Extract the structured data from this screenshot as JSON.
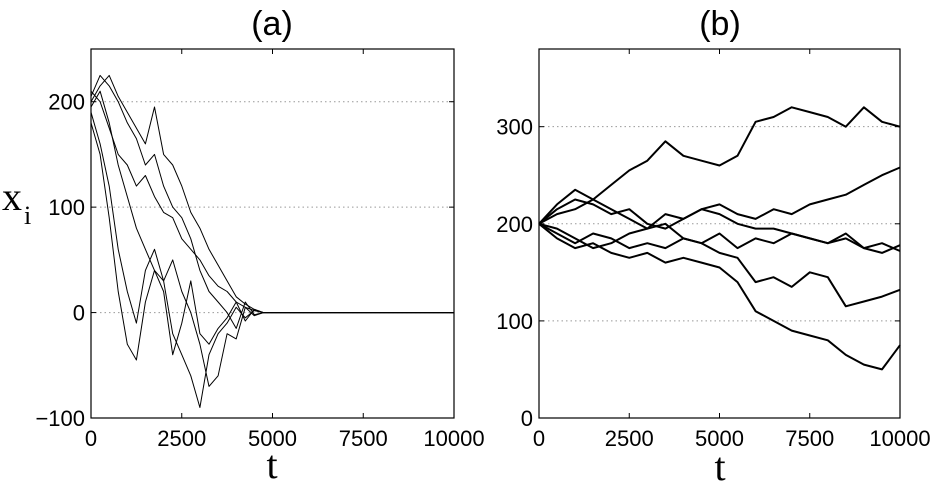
{
  "chart_data": [
    {
      "type": "line",
      "title": "(a)",
      "xlabel": "t",
      "ylabel": "x",
      "ylabel_subscript": "i",
      "xlim": [
        0,
        10000
      ],
      "ylim": [
        -100,
        250
      ],
      "xticks": [
        0,
        2500,
        5000,
        7500,
        10000
      ],
      "xtick_labels": [
        "0",
        "2500",
        "5000",
        "7500",
        "10000"
      ],
      "yticks": [
        -100,
        0,
        100,
        200
      ],
      "ytick_labels": [
        "−100",
        "0",
        "100",
        "200"
      ],
      "grid": "horizontal dotted",
      "line_color": "#000000",
      "series": [
        {
          "x": [
            0,
            250,
            500,
            750,
            1000,
            1250,
            1500,
            1750,
            2000,
            2250,
            2500,
            2750,
            3000,
            3250,
            3500,
            3750,
            4000,
            4250,
            4500,
            4750,
            5000,
            7500,
            10000
          ],
          "values": [
            200,
            215,
            225,
            205,
            190,
            175,
            160,
            195,
            150,
            140,
            120,
            95,
            80,
            60,
            45,
            30,
            15,
            8,
            3,
            0,
            0,
            0,
            0
          ]
        },
        {
          "x": [
            0,
            250,
            500,
            750,
            1000,
            1250,
            1500,
            1750,
            2000,
            2250,
            2500,
            2750,
            3000,
            3250,
            3500,
            3750,
            4000,
            4250,
            4500,
            4750,
            5000,
            7500,
            10000
          ],
          "values": [
            210,
            200,
            175,
            150,
            140,
            120,
            130,
            110,
            95,
            90,
            70,
            60,
            50,
            35,
            25,
            20,
            10,
            5,
            2,
            0,
            0,
            0,
            0
          ]
        },
        {
          "x": [
            0,
            250,
            500,
            750,
            1000,
            1250,
            1500,
            1750,
            2000,
            2250,
            2500,
            2750,
            3000,
            3250,
            3500,
            3750,
            4000,
            4250,
            4500,
            4750,
            5000,
            7500,
            10000
          ],
          "values": [
            190,
            160,
            120,
            60,
            20,
            -10,
            40,
            60,
            30,
            -20,
            -40,
            -60,
            -90,
            -40,
            -20,
            -10,
            5,
            -5,
            2,
            0,
            0,
            0,
            0
          ]
        },
        {
          "x": [
            0,
            250,
            500,
            750,
            1000,
            1250,
            1500,
            1750,
            2000,
            2250,
            2500,
            2750,
            3000,
            3250,
            3500,
            3750,
            4000,
            4250,
            4500,
            4750,
            5000,
            7500,
            10000
          ],
          "values": [
            180,
            150,
            90,
            20,
            -30,
            -45,
            10,
            40,
            20,
            -40,
            -10,
            30,
            -20,
            -30,
            -15,
            -5,
            10,
            -8,
            3,
            0,
            0,
            0,
            0
          ]
        },
        {
          "x": [
            0,
            250,
            500,
            750,
            1000,
            1250,
            1500,
            1750,
            2000,
            2250,
            2500,
            2750,
            3000,
            3250,
            3500,
            3750,
            4000,
            4250,
            4500,
            4750,
            5000,
            7500,
            10000
          ],
          "values": [
            205,
            225,
            215,
            200,
            180,
            165,
            140,
            150,
            120,
            100,
            90,
            70,
            40,
            20,
            10,
            0,
            -15,
            10,
            -2,
            0,
            0,
            0,
            0
          ]
        },
        {
          "x": [
            0,
            250,
            500,
            750,
            1000,
            1250,
            1500,
            1750,
            2000,
            2250,
            2500,
            2750,
            3000,
            3250,
            3500,
            3750,
            4000,
            4250,
            4500,
            4750,
            5000,
            7500,
            10000
          ],
          "values": [
            195,
            210,
            180,
            140,
            110,
            80,
            60,
            40,
            30,
            50,
            20,
            0,
            -30,
            -70,
            -60,
            -20,
            -25,
            5,
            -3,
            0,
            0,
            0,
            0
          ]
        }
      ]
    },
    {
      "type": "line",
      "title": "(b)",
      "xlabel": "t",
      "ylabel": "",
      "xlim": [
        0,
        10000
      ],
      "ylim": [
        0,
        380
      ],
      "xticks": [
        0,
        2500,
        5000,
        7500,
        10000
      ],
      "xtick_labels": [
        "0",
        "2500",
        "5000",
        "7500",
        "10000"
      ],
      "yticks": [
        0,
        100,
        200,
        300
      ],
      "ytick_labels": [
        "0",
        "100",
        "200",
        "300"
      ],
      "grid": "horizontal dotted",
      "line_color": "#000000",
      "series": [
        {
          "x": [
            0,
            500,
            1000,
            1500,
            2000,
            2500,
            3000,
            3500,
            4000,
            4500,
            5000,
            5500,
            6000,
            6500,
            7000,
            7500,
            8000,
            8500,
            9000,
            9500,
            10000
          ],
          "values": [
            200,
            210,
            215,
            225,
            240,
            255,
            265,
            285,
            270,
            265,
            260,
            270,
            305,
            310,
            320,
            315,
            310,
            300,
            320,
            305,
            300
          ]
        },
        {
          "x": [
            0,
            500,
            1000,
            1500,
            2000,
            2500,
            3000,
            3500,
            4000,
            4500,
            5000,
            5500,
            6000,
            6500,
            7000,
            7500,
            8000,
            8500,
            9000,
            9500,
            10000
          ],
          "values": [
            200,
            215,
            225,
            220,
            210,
            215,
            200,
            195,
            205,
            215,
            220,
            210,
            205,
            215,
            210,
            220,
            225,
            230,
            240,
            250,
            258
          ]
        },
        {
          "x": [
            0,
            500,
            1000,
            1500,
            2000,
            2500,
            3000,
            3500,
            4000,
            4500,
            5000,
            5500,
            6000,
            6500,
            7000,
            7500,
            8000,
            8500,
            9000,
            9500,
            10000
          ],
          "values": [
            200,
            220,
            235,
            225,
            215,
            205,
            195,
            210,
            205,
            215,
            210,
            200,
            195,
            195,
            190,
            185,
            180,
            190,
            175,
            180,
            172
          ]
        },
        {
          "x": [
            0,
            500,
            1000,
            1500,
            2000,
            2500,
            3000,
            3500,
            4000,
            4500,
            5000,
            5500,
            6000,
            6500,
            7000,
            7500,
            8000,
            8500,
            9000,
            9500,
            10000
          ],
          "values": [
            200,
            195,
            185,
            175,
            180,
            190,
            195,
            200,
            185,
            180,
            190,
            175,
            185,
            180,
            190,
            185,
            180,
            185,
            175,
            170,
            178
          ]
        },
        {
          "x": [
            0,
            500,
            1000,
            1500,
            2000,
            2500,
            3000,
            3500,
            4000,
            4500,
            5000,
            5500,
            6000,
            6500,
            7000,
            7500,
            8000,
            8500,
            9000,
            9500,
            10000
          ],
          "values": [
            200,
            190,
            180,
            190,
            185,
            175,
            180,
            175,
            185,
            180,
            170,
            165,
            140,
            145,
            135,
            150,
            145,
            115,
            120,
            125,
            132
          ]
        },
        {
          "x": [
            0,
            500,
            1000,
            1500,
            2000,
            2500,
            3000,
            3500,
            4000,
            4500,
            5000,
            5500,
            6000,
            6500,
            7000,
            7500,
            8000,
            8500,
            9000,
            9500,
            10000
          ],
          "values": [
            200,
            185,
            175,
            180,
            170,
            165,
            170,
            160,
            165,
            160,
            155,
            140,
            110,
            100,
            90,
            85,
            80,
            65,
            55,
            50,
            75
          ]
        }
      ]
    }
  ]
}
